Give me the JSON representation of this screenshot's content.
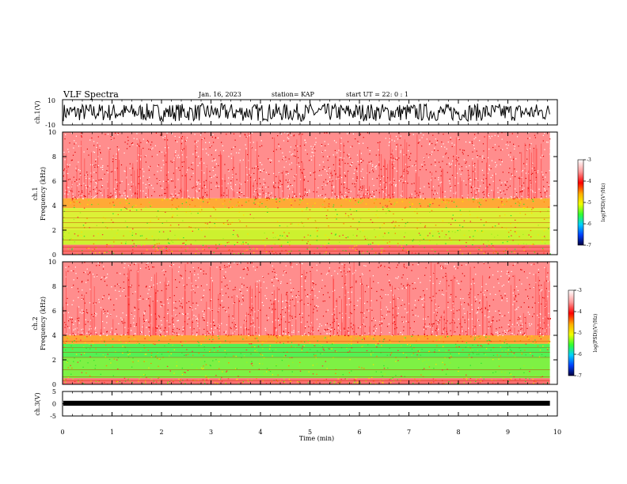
{
  "header": {
    "title": "VLF Spectra",
    "date": "Jan. 16, 2023",
    "station": "station= KAP",
    "start": "start  UT  =   22: 0  : 1"
  },
  "chart_data": [
    {
      "type": "line",
      "panel": "ch1-waveform",
      "ylabel": "ch.1(V)",
      "ylim": [
        -10,
        10
      ],
      "yticks": [
        "10",
        "-10"
      ],
      "xlim": [
        0,
        10
      ]
    },
    {
      "type": "heatmap",
      "panel": "ch1-spectrogram",
      "ylabel": "ch.1\nFrequency (kHz)",
      "ylim": [
        0,
        10
      ],
      "yticks": [
        "0",
        "2",
        "4",
        "6",
        "8",
        "10"
      ],
      "xlim": [
        0,
        10
      ],
      "data_end_min": 9.85,
      "colorbar": {
        "label": "log(PSD)(V²/Hz)",
        "range": [
          -7,
          -3
        ],
        "ticks": [
          "-3",
          "-4",
          "-5",
          "-6",
          "-7"
        ]
      },
      "bands": [
        {
          "fmin": 4.6,
          "fmax": 10.0,
          "color": "#ff3030"
        },
        {
          "fmin": 3.8,
          "fmax": 4.6,
          "color": "#ffa020"
        },
        {
          "fmin": 2.0,
          "fmax": 3.8,
          "color": "#d8f020"
        },
        {
          "fmin": 0.8,
          "fmax": 2.0,
          "color": "#c8f018"
        },
        {
          "fmin": 0.0,
          "fmax": 0.8,
          "color": "#ff6060"
        }
      ]
    },
    {
      "type": "heatmap",
      "panel": "ch2-spectrogram",
      "ylabel": "ch.2\nFrequency (kHz)",
      "ylim": [
        0,
        10
      ],
      "yticks": [
        "0",
        "2",
        "4",
        "6",
        "8",
        "10"
      ],
      "xlim": [
        0,
        10
      ],
      "data_end_min": 9.85,
      "colorbar": {
        "label": "log(PSD)(V²/Hz)",
        "range": [
          -7,
          -3
        ],
        "ticks": [
          "-3",
          "-4",
          "-5",
          "-6",
          "-7"
        ]
      },
      "bands": [
        {
          "fmin": 4.0,
          "fmax": 10.0,
          "color": "#ff3030"
        },
        {
          "fmin": 3.3,
          "fmax": 4.0,
          "color": "#ff9a20"
        },
        {
          "fmin": 2.2,
          "fmax": 3.3,
          "color": "#40f040"
        },
        {
          "fmin": 0.5,
          "fmax": 2.2,
          "color": "#70f030"
        },
        {
          "fmin": 0.0,
          "fmax": 0.5,
          "color": "#ff6060"
        }
      ]
    },
    {
      "type": "line",
      "panel": "ch3-waveform",
      "ylabel": "ch.3(V)",
      "ylim": [
        -5,
        5
      ],
      "yticks": [
        "5",
        "0",
        "-5"
      ],
      "xlim": [
        0,
        10
      ],
      "xlabel": "Time  (min)",
      "xticks": [
        "0",
        "1",
        "2",
        "3",
        "4",
        "5",
        "6",
        "7",
        "8",
        "9",
        "10"
      ]
    }
  ]
}
